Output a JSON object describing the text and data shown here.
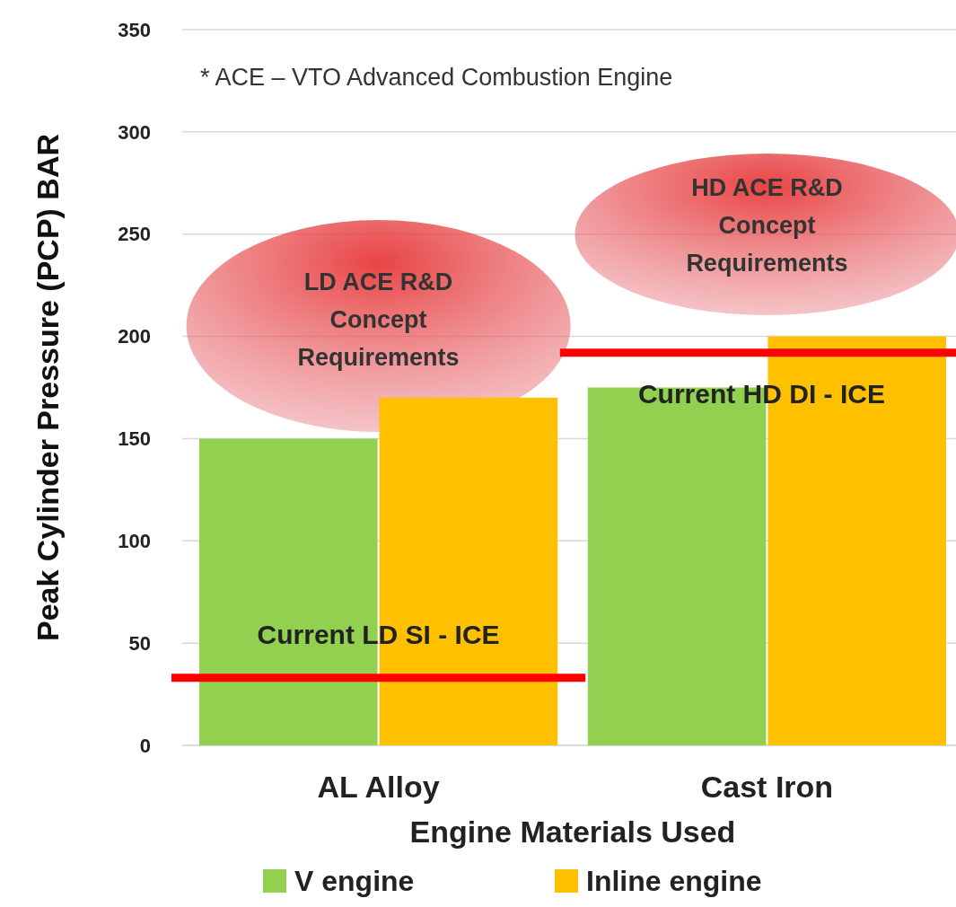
{
  "chart_data": {
    "type": "bar",
    "xlabel": "Engine Materials Used",
    "ylabel": "Peak Cylinder Pressure (PCP) BAR",
    "categories": [
      "AL Alloy",
      "Cast Iron"
    ],
    "series": [
      {
        "name": "V engine",
        "color": "#92d050",
        "values": [
          150,
          175
        ]
      },
      {
        "name": "Inline engine",
        "color": "#ffc000",
        "values": [
          170,
          200
        ]
      }
    ],
    "ylim": [
      0,
      350
    ],
    "yticks": [
      0,
      50,
      100,
      150,
      200,
      250,
      300,
      350
    ],
    "grid": "y",
    "legend": "bottom",
    "ref_lines": [
      {
        "axis": "y",
        "value": 33,
        "label": "Current LD SI - ICE",
        "color": "#ff0000"
      },
      {
        "axis": "y",
        "value": 192,
        "label": "Current HD DI - ICE",
        "color": "#ff0000"
      }
    ],
    "annotations": [
      "* ACE – VTO Advanced Combustion Engine",
      "LD ACE R&D\nConcept\nRequirements",
      "HD ACE R&D\nConcept\nRequirements"
    ]
  }
}
